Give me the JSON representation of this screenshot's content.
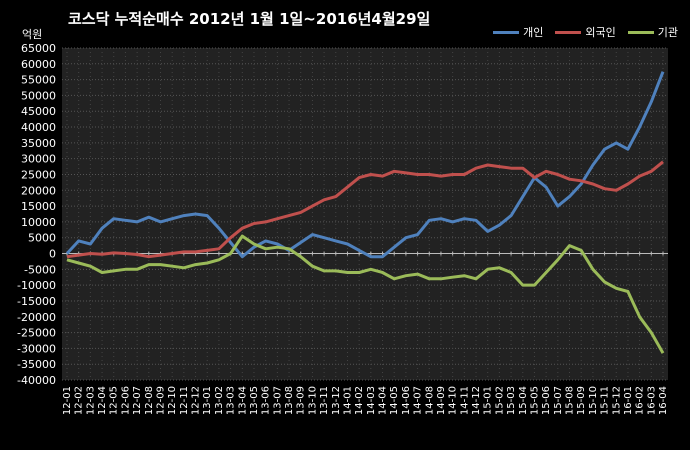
{
  "chart_data": {
    "type": "line",
    "title": "코스닥  누적순매수 2012년 1월 1일~2016년4월29일",
    "unit": "억원",
    "ylim": [
      -40000,
      65000
    ],
    "y_ticks": [
      65000,
      60000,
      55000,
      50000,
      45000,
      40000,
      35000,
      30000,
      25000,
      20000,
      15000,
      10000,
      5000,
      0,
      -5000,
      -10000,
      -15000,
      -20000,
      -25000,
      -30000,
      -35000,
      -40000
    ],
    "grid": true,
    "legend_position": "top-right",
    "categories": [
      "12-01",
      "12-02",
      "12-03",
      "12-04",
      "12-05",
      "12-06",
      "12-07",
      "12-08",
      "12-09",
      "12-10",
      "12-11",
      "12-12",
      "13-01",
      "13-02",
      "13-03",
      "13-04",
      "13-05",
      "13-06",
      "13-07",
      "13-08",
      "13-09",
      "13-10",
      "13-11",
      "13-12",
      "14-01",
      "14-02",
      "14-03",
      "14-04",
      "14-05",
      "14-06",
      "14-07",
      "14-08",
      "14-09",
      "14-10",
      "14-11",
      "14-12",
      "15-01",
      "15-02",
      "15-03",
      "15-04",
      "15-05",
      "15-06",
      "15-07",
      "15-08",
      "15-09",
      "15-10",
      "15-11",
      "15-12",
      "16-01",
      "16-02",
      "16-03",
      "16-04"
    ],
    "series": [
      {
        "name": "개인",
        "color": "#4f81bd",
        "values": [
          0,
          4000,
          3000,
          8000,
          11000,
          10500,
          10000,
          11500,
          10000,
          11000,
          12000,
          12500,
          12000,
          8000,
          3500,
          -1000,
          2000,
          4000,
          3000,
          1000,
          3500,
          6000,
          5000,
          4000,
          3000,
          1000,
          -1000,
          -1000,
          2000,
          5000,
          6000,
          10500,
          11000,
          10000,
          11000,
          10500,
          7000,
          9000,
          12000,
          18000,
          24000,
          21000,
          15000,
          18000,
          22000,
          28000,
          33000,
          35000,
          33000,
          40000,
          48000,
          57500
        ]
      },
      {
        "name": "외국인",
        "color": "#c0504d",
        "values": [
          -1000,
          -500,
          0,
          -200,
          200,
          0,
          -300,
          -1000,
          -500,
          0,
          500,
          500,
          1000,
          1500,
          5000,
          8000,
          9500,
          10000,
          11000,
          12000,
          13000,
          15000,
          17000,
          18000,
          21000,
          24000,
          25000,
          24500,
          26000,
          25500,
          25000,
          25000,
          24500,
          25000,
          25000,
          27000,
          28000,
          27500,
          27000,
          27000,
          24000,
          26000,
          25000,
          23500,
          23000,
          22000,
          20500,
          20000,
          22000,
          24500,
          26000,
          29000
        ]
      },
      {
        "name": "기관",
        "color": "#9bbb59",
        "values": [
          -2000,
          -3000,
          -4000,
          -6000,
          -5500,
          -5000,
          -5000,
          -3500,
          -3500,
          -4000,
          -4500,
          -3500,
          -3000,
          -2000,
          0,
          5500,
          3000,
          1500,
          2000,
          1500,
          -1000,
          -4000,
          -5500,
          -5500,
          -6000,
          -6000,
          -5000,
          -6000,
          -8000,
          -7000,
          -6500,
          -8000,
          -8000,
          -7500,
          -7000,
          -8000,
          -5000,
          -4500,
          -6000,
          -10000,
          -10000,
          -6000,
          -2000,
          2500,
          1000,
          -5000,
          -9000,
          -11000,
          -12000,
          -20000,
          -25000,
          -31500
        ]
      }
    ]
  }
}
